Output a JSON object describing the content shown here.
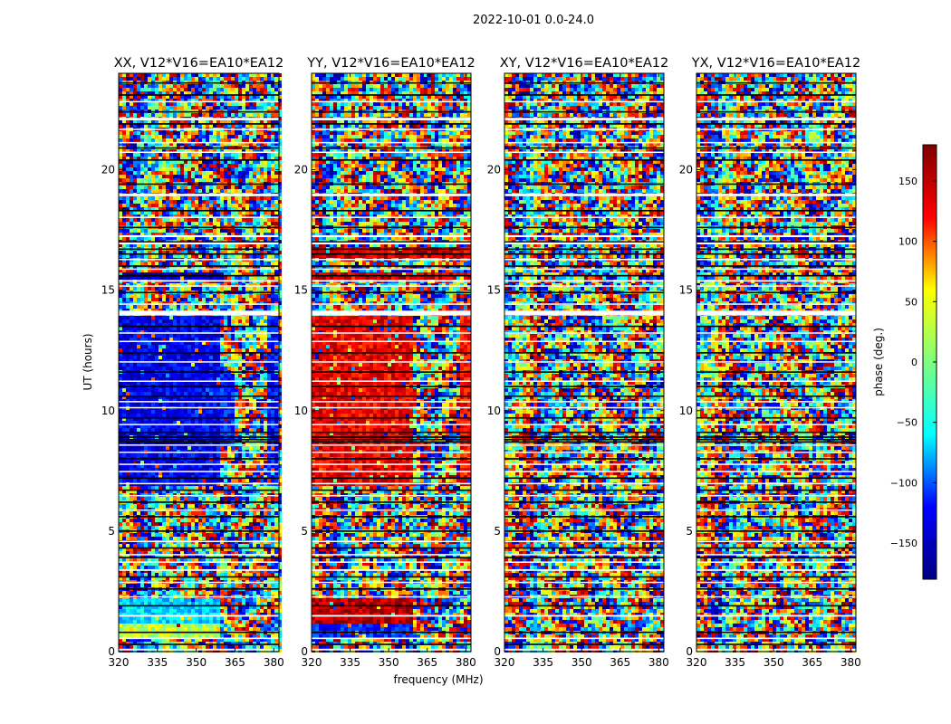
{
  "figure": {
    "suptitle": "2022-10-01 0.0-24.0",
    "xlabel": "frequency (MHz)",
    "ylabel": "UT (hours)"
  },
  "colorbar": {
    "label": "phase (deg.)",
    "range": [
      -180,
      180
    ],
    "ticks": [
      150,
      100,
      50,
      0,
      -50,
      -100,
      -150
    ],
    "tick_labels": [
      "150",
      "100",
      "50",
      "0",
      "−50",
      "−100",
      "−150"
    ],
    "colormap": "jet",
    "colors": [
      "#00007f",
      "#0000ff",
      "#00ffff",
      "#7fff7f",
      "#ffff00",
      "#ff0000",
      "#7f0000"
    ]
  },
  "chart_data": [
    {
      "type": "heatmap",
      "title": "XX, V12*V16=EA10*EA12",
      "xlabel": "frequency (MHz)",
      "ylabel": "UT (hours)",
      "xlim": [
        320,
        382
      ],
      "ylim": [
        0,
        24
      ],
      "xticks": [
        320,
        335,
        350,
        365,
        380
      ],
      "yticks": [
        0,
        5,
        10,
        15,
        20
      ],
      "regions": [
        {
          "x0": 320,
          "x1": 359,
          "y0": 6.8,
          "y1": 13.9,
          "phase": -140
        },
        {
          "x0": 359,
          "x1": 365,
          "y0": 8.5,
          "y1": 11.5,
          "phase": -120
        },
        {
          "x0": 378,
          "x1": 382,
          "y0": 6.8,
          "y1": 13.9,
          "phase": -130
        },
        {
          "x0": 320,
          "x1": 359,
          "y0": 15.5,
          "y1": 15.8,
          "phase": -160
        },
        {
          "x0": 320,
          "x1": 359,
          "y0": 1.2,
          "y1": 2.2,
          "phase": -60
        },
        {
          "x0": 320,
          "x1": 359,
          "y0": 0.5,
          "y1": 1.2,
          "phase": 20
        }
      ]
    },
    {
      "type": "heatmap",
      "title": "YY, V12*V16=EA10*EA12",
      "xlabel": "frequency (MHz)",
      "ylabel": "UT (hours)",
      "xlim": [
        320,
        382
      ],
      "ylim": [
        0,
        24
      ],
      "xticks": [
        320,
        335,
        350,
        365,
        380
      ],
      "yticks": [
        0,
        5,
        10,
        15,
        20
      ],
      "regions": [
        {
          "x0": 320,
          "x1": 359,
          "y0": 6.8,
          "y1": 13.9,
          "phase": 140
        },
        {
          "x0": 378,
          "x1": 382,
          "y0": 6.8,
          "y1": 13.9,
          "phase": 130
        },
        {
          "x0": 320,
          "x1": 382,
          "y0": 15.5,
          "y1": 15.8,
          "phase": 150
        },
        {
          "x0": 320,
          "x1": 382,
          "y0": 16.4,
          "y1": 16.8,
          "phase": 150
        },
        {
          "x0": 320,
          "x1": 359,
          "y0": 1.2,
          "y1": 2.2,
          "phase": 160
        },
        {
          "x0": 320,
          "x1": 359,
          "y0": 0.5,
          "y1": 1.2,
          "phase": -120
        }
      ]
    },
    {
      "type": "heatmap",
      "title": "XY, V12*V16=EA10*EA12",
      "xlabel": "frequency (MHz)",
      "ylabel": "UT (hours)",
      "xlim": [
        320,
        382
      ],
      "ylim": [
        0,
        24
      ],
      "xticks": [
        320,
        335,
        350,
        365,
        380
      ],
      "yticks": [
        0,
        5,
        10,
        15,
        20
      ],
      "regions": []
    },
    {
      "type": "heatmap",
      "title": "YX, V12*V16=EA10*EA12",
      "xlabel": "frequency (MHz)",
      "ylabel": "UT (hours)",
      "xlim": [
        320,
        382
      ],
      "ylim": [
        0,
        24
      ],
      "xticks": [
        320,
        335,
        350,
        365,
        380
      ],
      "yticks": [
        0,
        5,
        10,
        15,
        20
      ],
      "regions": []
    }
  ]
}
